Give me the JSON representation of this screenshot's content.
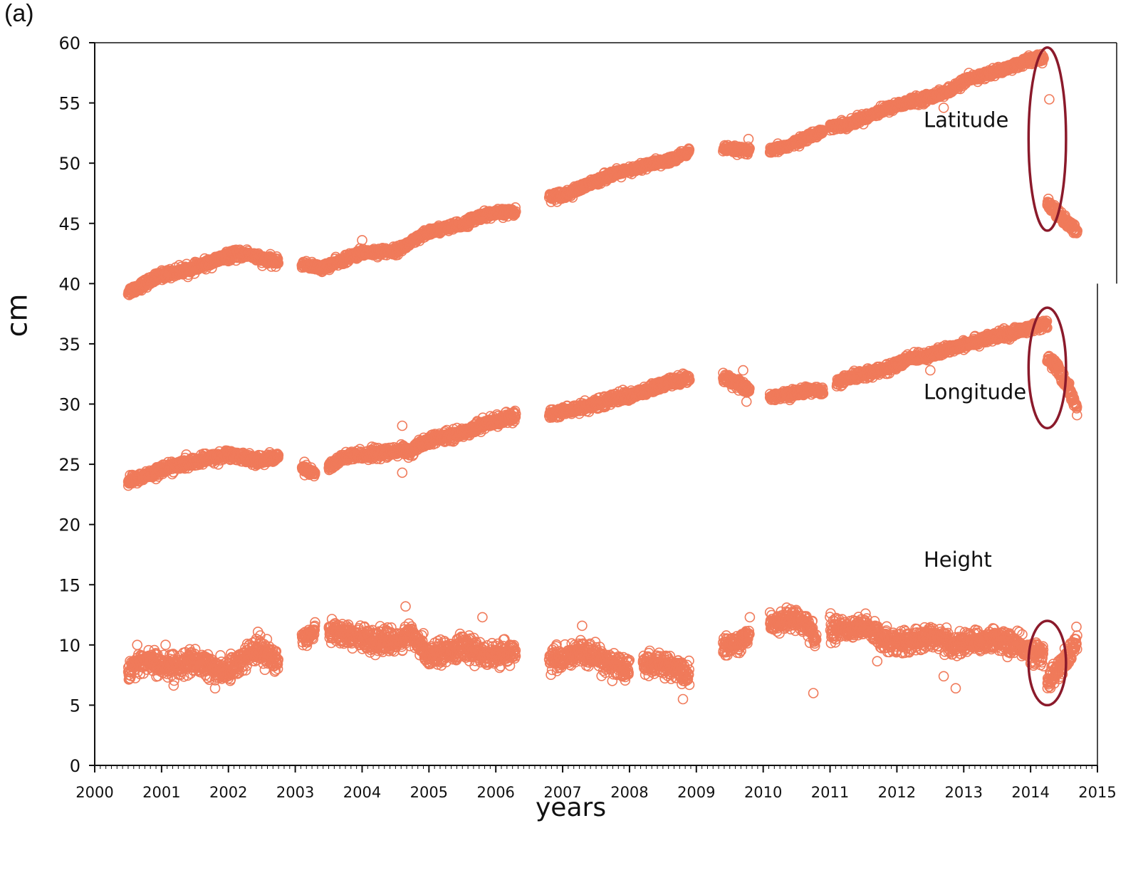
{
  "chart_data": {
    "type": "scatter",
    "panel_label": "(a)",
    "title": "",
    "xlabel": "years",
    "ylabel": "cm",
    "xlim": [
      2000,
      2015
    ],
    "ylim": [
      0,
      60
    ],
    "x_ticks": [
      "2000",
      "2001",
      "2002",
      "2003",
      "2004",
      "2005",
      "2006",
      "2007",
      "2008",
      "2009",
      "2010",
      "2011",
      "2012",
      "2013",
      "2014",
      "2015"
    ],
    "y_ticks": [
      "0",
      "5",
      "10",
      "15",
      "20",
      "25",
      "30",
      "35",
      "40",
      "45",
      "50",
      "55",
      "60"
    ],
    "marker_color": "#f07a5a",
    "highlight_color": "#8b1a2b",
    "series": [
      {
        "name": "Latitude",
        "label_pos": [
          2012.4,
          53.0
        ],
        "segments": [
          {
            "points": [
              [
                2000.5,
                39.3
              ],
              [
                2000.75,
                40.0
              ],
              [
                2001.0,
                40.7
              ],
              [
                2001.5,
                41.3
              ],
              [
                2002.0,
                42.3
              ],
              [
                2002.3,
                42.5
              ],
              [
                2002.5,
                42.0
              ],
              [
                2002.75,
                41.8
              ]
            ],
            "spread": 0.4
          },
          {
            "points": [
              [
                2003.1,
                41.6
              ],
              [
                2003.4,
                41.3
              ]
            ],
            "spread": 0.3
          },
          {
            "points": [
              [
                2003.4,
                41.3
              ],
              [
                2003.7,
                41.9
              ],
              [
                2004.0,
                42.6
              ],
              [
                2004.5,
                42.7
              ],
              [
                2004.7,
                43.3
              ],
              [
                2005.0,
                44.3
              ],
              [
                2005.5,
                44.9
              ],
              [
                2005.8,
                45.7
              ],
              [
                2006.3,
                46.0
              ]
            ],
            "spread": 0.35
          },
          {
            "points": [
              [
                2006.8,
                47.2
              ],
              [
                2007.1,
                47.5
              ],
              [
                2007.3,
                48.0
              ],
              [
                2007.7,
                49.0
              ],
              [
                2008.1,
                49.5
              ],
              [
                2008.2,
                49.8
              ],
              [
                2008.6,
                50.2
              ],
              [
                2008.9,
                51.0
              ]
            ],
            "spread": 0.35
          },
          {
            "points": [
              [
                2009.4,
                51.2
              ],
              [
                2009.8,
                51.0
              ]
            ],
            "spread": 0.3
          },
          {
            "points": [
              [
                2010.1,
                51.0
              ],
              [
                2010.4,
                51.5
              ],
              [
                2010.8,
                52.5
              ],
              [
                2010.9,
                52.7
              ]
            ],
            "spread": 0.3
          },
          {
            "points": [
              [
                2011.0,
                53.0
              ],
              [
                2011.3,
                53.3
              ],
              [
                2011.6,
                54.0
              ],
              [
                2012.0,
                54.8
              ],
              [
                2012.5,
                55.5
              ],
              [
                2012.8,
                56.0
              ],
              [
                2013.0,
                56.8
              ],
              [
                2013.6,
                57.8
              ],
              [
                2014.0,
                58.6
              ],
              [
                2014.2,
                58.7
              ]
            ],
            "spread": 0.35
          },
          {
            "points": [
              [
                2014.25,
                46.7
              ],
              [
                2014.4,
                45.8
              ],
              [
                2014.55,
                45.0
              ],
              [
                2014.7,
                44.3
              ]
            ],
            "spread": 0.45
          }
        ],
        "outliers": [
          [
            2014.28,
            55.3
          ],
          [
            2012.7,
            54.6
          ],
          [
            2009.78,
            52.0
          ],
          [
            2004.0,
            43.6
          ]
        ]
      },
      {
        "name": "Longitude",
        "label_pos": [
          2012.4,
          30.4
        ],
        "segments": [
          {
            "points": [
              [
                2000.5,
                23.6
              ],
              [
                2000.75,
                24.0
              ],
              [
                2001.0,
                24.6
              ],
              [
                2001.5,
                25.2
              ],
              [
                2002.0,
                25.8
              ],
              [
                2002.3,
                25.5
              ],
              [
                2002.5,
                25.3
              ],
              [
                2002.75,
                25.7
              ]
            ],
            "spread": 0.45
          },
          {
            "points": [
              [
                2003.1,
                24.7
              ],
              [
                2003.3,
                24.2
              ]
            ],
            "spread": 0.4
          },
          {
            "points": [
              [
                2003.5,
                24.8
              ],
              [
                2003.7,
                25.5
              ],
              [
                2004.0,
                25.8
              ],
              [
                2004.5,
                26.0
              ],
              [
                2004.6,
                26.3
              ],
              [
                2004.7,
                26.0
              ],
              [
                2005.0,
                27.0
              ],
              [
                2005.5,
                27.6
              ],
              [
                2005.8,
                28.3
              ],
              [
                2006.3,
                29.0
              ]
            ],
            "spread": 0.45
          },
          {
            "points": [
              [
                2006.8,
                29.2
              ],
              [
                2007.1,
                29.5
              ],
              [
                2007.5,
                30.0
              ],
              [
                2007.8,
                30.5
              ],
              [
                2008.1,
                30.8
              ],
              [
                2008.2,
                31.0
              ],
              [
                2008.6,
                31.8
              ],
              [
                2008.9,
                32.2
              ]
            ],
            "spread": 0.45
          },
          {
            "points": [
              [
                2009.4,
                32.2
              ],
              [
                2009.6,
                31.8
              ],
              [
                2009.8,
                31.0
              ]
            ],
            "spread": 0.45
          },
          {
            "points": [
              [
                2010.1,
                30.6
              ],
              [
                2010.4,
                30.8
              ],
              [
                2010.7,
                31.2
              ],
              [
                2010.9,
                31.0
              ]
            ],
            "spread": 0.35
          },
          {
            "points": [
              [
                2011.1,
                31.8
              ],
              [
                2011.5,
                32.5
              ],
              [
                2011.9,
                33.0
              ],
              [
                2012.2,
                33.8
              ],
              [
                2012.6,
                34.2
              ],
              [
                2013.0,
                35.0
              ],
              [
                2013.5,
                35.6
              ],
              [
                2014.0,
                36.3
              ],
              [
                2014.25,
                36.6
              ]
            ],
            "spread": 0.4
          },
          {
            "points": [
              [
                2014.25,
                33.8
              ],
              [
                2014.4,
                33.0
              ],
              [
                2014.55,
                31.5
              ],
              [
                2014.7,
                29.6
              ]
            ],
            "spread": 0.45
          }
        ],
        "outliers": [
          [
            2009.75,
            30.2
          ],
          [
            2009.7,
            32.8
          ],
          [
            2004.6,
            28.2
          ],
          [
            2004.6,
            24.3
          ],
          [
            2012.5,
            32.8
          ],
          [
            2013.0,
            34.5
          ]
        ]
      },
      {
        "name": "Height",
        "label_pos": [
          2012.4,
          16.5
        ],
        "segments": [
          {
            "points": [
              [
                2000.5,
                8.0
              ],
              [
                2000.8,
                8.8
              ],
              [
                2001.0,
                8.2
              ],
              [
                2001.5,
                8.5
              ],
              [
                2002.0,
                7.8
              ],
              [
                2002.3,
                9.3
              ],
              [
                2002.5,
                9.6
              ],
              [
                2002.75,
                8.5
              ]
            ],
            "spread": 1.1
          },
          {
            "points": [
              [
                2003.1,
                10.5
              ],
              [
                2003.3,
                11.3
              ]
            ],
            "spread": 0.8
          },
          {
            "points": [
              [
                2003.5,
                11.3
              ],
              [
                2004.0,
                10.5
              ],
              [
                2004.5,
                10.2
              ],
              [
                2004.7,
                10.9
              ],
              [
                2005.0,
                9.2
              ],
              [
                2005.5,
                9.8
              ],
              [
                2006.0,
                9.0
              ],
              [
                2006.3,
                9.5
              ]
            ],
            "spread": 1.0
          },
          {
            "points": [
              [
                2006.8,
                9.0
              ],
              [
                2007.0,
                8.7
              ],
              [
                2007.3,
                9.5
              ],
              [
                2007.7,
                8.5
              ],
              [
                2008.0,
                7.8
              ]
            ],
            "spread": 1.1
          },
          {
            "points": [
              [
                2008.2,
                8.5
              ],
              [
                2008.6,
                8.2
              ],
              [
                2008.9,
                7.5
              ]
            ],
            "spread": 1.0
          },
          {
            "points": [
              [
                2009.4,
                9.8
              ],
              [
                2009.6,
                10.2
              ],
              [
                2009.8,
                10.8
              ]
            ],
            "spread": 0.9
          },
          {
            "points": [
              [
                2010.1,
                11.8
              ],
              [
                2010.4,
                12.2
              ],
              [
                2010.6,
                12.0
              ],
              [
                2010.8,
                10.5
              ]
            ],
            "spread": 0.9
          },
          {
            "points": [
              [
                2011.0,
                11.3
              ],
              [
                2011.5,
                11.5
              ],
              [
                2011.8,
                10.5
              ],
              [
                2012.2,
                10.2
              ],
              [
                2012.5,
                10.8
              ],
              [
                2012.8,
                10.0
              ],
              [
                2013.2,
                10.3
              ],
              [
                2013.5,
                10.5
              ],
              [
                2014.0,
                9.5
              ],
              [
                2014.2,
                9.2
              ]
            ],
            "spread": 1.0
          },
          {
            "points": [
              [
                2014.25,
                7.0
              ],
              [
                2014.4,
                7.8
              ],
              [
                2014.55,
                8.8
              ],
              [
                2014.7,
                10.5
              ]
            ],
            "spread": 1.0
          }
        ],
        "outliers": [
          [
            2010.75,
            6.0
          ],
          [
            2012.88,
            6.4
          ],
          [
            2012.7,
            7.4
          ],
          [
            2008.8,
            5.5
          ],
          [
            2001.8,
            6.4
          ],
          [
            2004.65,
            13.2
          ],
          [
            2005.8,
            12.3
          ],
          [
            2009.8,
            12.3
          ]
        ]
      }
    ],
    "annotations": [
      {
        "type": "ellipse",
        "cx": 2014.25,
        "cy": 52.0,
        "rx": 0.28,
        "ry": 7.6
      },
      {
        "type": "ellipse",
        "cx": 2014.25,
        "cy": 33.0,
        "rx": 0.28,
        "ry": 5.0
      },
      {
        "type": "ellipse",
        "cx": 2014.25,
        "cy": 8.5,
        "rx": 0.28,
        "ry": 3.5
      }
    ]
  }
}
